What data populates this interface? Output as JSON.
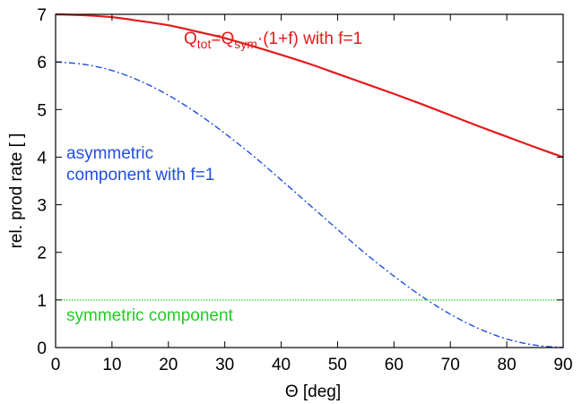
{
  "chart_data": {
    "type": "line",
    "xlabel": "Θ [deg]",
    "ylabel": "rel. prod rate [ ]",
    "xlim": [
      0,
      90
    ],
    "ylim": [
      0,
      7
    ],
    "x_ticks": [
      0,
      10,
      20,
      30,
      40,
      50,
      60,
      70,
      80,
      90
    ],
    "y_ticks": [
      0,
      1,
      2,
      3,
      4,
      5,
      6,
      7
    ],
    "grid": false,
    "legend": "none",
    "series": [
      {
        "id": "total",
        "color": "#e41a1c",
        "style": "solid",
        "x": [
          0,
          5,
          10,
          15,
          20,
          25,
          30,
          35,
          40,
          45,
          50,
          55,
          60,
          65,
          70,
          75,
          80,
          85,
          90
        ],
        "y": [
          7.0,
          6.98,
          6.94,
          6.86,
          6.77,
          6.64,
          6.5,
          6.33,
          6.15,
          5.96,
          5.75,
          5.54,
          5.33,
          5.11,
          4.88,
          4.65,
          4.43,
          4.21,
          4.0
        ]
      },
      {
        "id": "asymmetric",
        "color": "#1f4fe0",
        "style": "dash-dot",
        "x": [
          0,
          5,
          10,
          15,
          20,
          25,
          30,
          35,
          40,
          45,
          50,
          55,
          60,
          65,
          70,
          75,
          80,
          85,
          90
        ],
        "y": [
          6.0,
          5.95,
          5.82,
          5.6,
          5.3,
          4.93,
          4.5,
          4.03,
          3.52,
          3.0,
          2.48,
          1.97,
          1.5,
          1.07,
          0.7,
          0.4,
          0.18,
          0.05,
          0.0
        ]
      },
      {
        "id": "symmetric",
        "color": "#22cc22",
        "style": "dotted",
        "x": [
          0,
          90
        ],
        "y": [
          1,
          1
        ]
      }
    ],
    "annotations": {
      "total": {
        "parts": [
          {
            "text": "Q",
            "sub": false
          },
          {
            "text": "tot",
            "sub": true
          },
          {
            "text": "=Q",
            "sub": false
          },
          {
            "text": "sym",
            "sub": true
          },
          {
            "text": "·(1+f) with f=1",
            "sub": false
          }
        ],
        "color": "#e41a1c"
      },
      "asymmetric": {
        "lines": [
          "asymmetric",
          "component with f=1"
        ],
        "color": "#1f4fe0"
      },
      "symmetric": {
        "text": "symmetric component",
        "color": "#22cc22"
      }
    }
  }
}
